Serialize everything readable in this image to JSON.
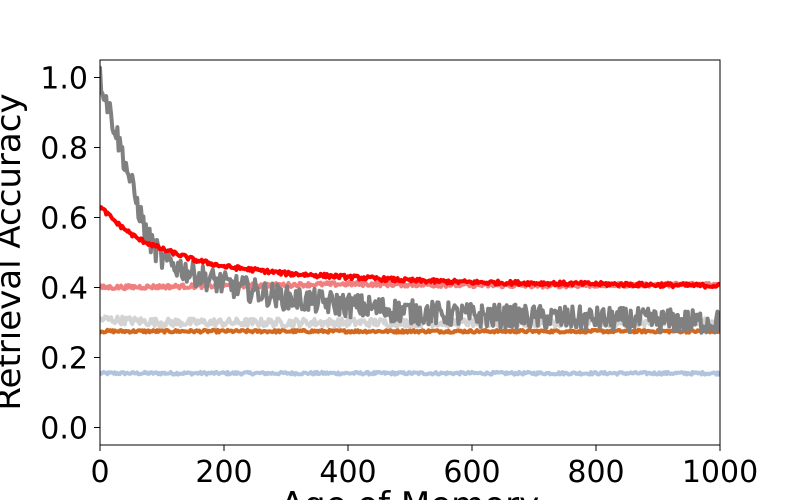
{
  "chart_data": {
    "type": "line",
    "title": "",
    "xlabel": "Age of Memory",
    "ylabel": "Retrieval Accuracy",
    "xlim": [
      0,
      1000
    ],
    "ylim": [
      -0.05,
      1.05
    ],
    "x_ticks": [
      0,
      200,
      400,
      600,
      800,
      1000
    ],
    "x_tick_labels": [
      "0",
      "200",
      "400",
      "600",
      "800",
      "1000"
    ],
    "y_ticks": [
      0.0,
      0.2,
      0.4,
      0.6,
      0.8,
      1.0
    ],
    "y_tick_labels": [
      "0.0",
      "0.2",
      "0.4",
      "0.6",
      "0.8",
      "1.0"
    ],
    "grid": false,
    "legend": "none",
    "series": [
      {
        "color": "#b0c4de",
        "noise": 0.004,
        "points": [
          [
            0,
            0.155
          ],
          [
            1000,
            0.155
          ]
        ]
      },
      {
        "color": "#d2691e",
        "noise": 0.004,
        "points": [
          [
            0,
            0.275
          ],
          [
            1000,
            0.275
          ]
        ]
      },
      {
        "color": "#d3d3d3",
        "noise": 0.012,
        "points": [
          [
            0,
            0.31
          ],
          [
            100,
            0.3
          ],
          [
            300,
            0.3
          ],
          [
            1000,
            0.3
          ]
        ]
      },
      {
        "color": "#f08080",
        "noise": 0.006,
        "points": [
          [
            0,
            0.4
          ],
          [
            200,
            0.405
          ],
          [
            400,
            0.41
          ],
          [
            700,
            0.405
          ],
          [
            1000,
            0.41
          ]
        ]
      },
      {
        "color": "#808080",
        "noise": 0.035,
        "points": [
          [
            0,
            1.0
          ],
          [
            20,
            0.88
          ],
          [
            50,
            0.7
          ],
          [
            75,
            0.55
          ],
          [
            100,
            0.48
          ],
          [
            150,
            0.44
          ],
          [
            200,
            0.41
          ],
          [
            300,
            0.37
          ],
          [
            400,
            0.35
          ],
          [
            500,
            0.33
          ],
          [
            600,
            0.32
          ],
          [
            800,
            0.31
          ],
          [
            1000,
            0.3
          ]
        ]
      },
      {
        "color": "#ff0000",
        "noise": 0.006,
        "points": [
          [
            0,
            0.63
          ],
          [
            30,
            0.58
          ],
          [
            60,
            0.54
          ],
          [
            100,
            0.51
          ],
          [
            150,
            0.48
          ],
          [
            200,
            0.46
          ],
          [
            300,
            0.44
          ],
          [
            400,
            0.43
          ],
          [
            500,
            0.42
          ],
          [
            600,
            0.415
          ],
          [
            800,
            0.41
          ],
          [
            1000,
            0.405
          ]
        ]
      }
    ]
  }
}
